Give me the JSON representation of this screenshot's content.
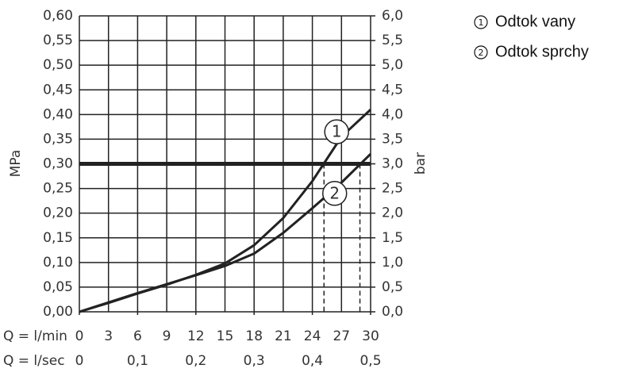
{
  "chart_data": {
    "type": "line",
    "x": [
      0,
      3,
      6,
      9,
      12,
      15,
      18,
      21,
      24,
      27,
      30
    ],
    "series": [
      {
        "name": "Odtok vany",
        "marker_label": "1",
        "color": "#222222",
        "values": [
          0,
          0.018,
          0.037,
          0.055,
          0.075,
          0.098,
          0.135,
          0.19,
          0.265,
          0.355,
          0.41
        ]
      },
      {
        "name": "Odtok sprchy",
        "marker_label": "2",
        "color": "#222222",
        "values": [
          0,
          0.019,
          0.038,
          0.056,
          0.074,
          0.093,
          0.118,
          0.16,
          0.21,
          0.262,
          0.32
        ]
      }
    ],
    "threshold": 0.3,
    "crossings": [
      25.2,
      28.9
    ],
    "xlabel": "Q = l/min",
    "x2label": "Q = l/sec",
    "ylabel": "MPa",
    "y2label": "bar",
    "xlim": [
      0,
      30
    ],
    "xticks": [
      0,
      3,
      6,
      9,
      12,
      15,
      18,
      21,
      24,
      27,
      30
    ],
    "x2lim": [
      0,
      0.5
    ],
    "x2ticks": [
      0,
      {
        "value": 0.1,
        "label": "0,1"
      },
      {
        "value": 0.2,
        "label": "0,2"
      },
      {
        "value": 0.3,
        "label": "0,3"
      },
      {
        "value": 0.4,
        "label": "0,4"
      },
      {
        "value": 0.5,
        "label": "0,5"
      }
    ],
    "ylim": [
      0,
      0.6
    ],
    "yticks": [
      {
        "value": 0,
        "label": "0,00"
      },
      {
        "value": 0.05,
        "label": "0,05"
      },
      {
        "value": 0.1,
        "label": "0,10"
      },
      {
        "value": 0.15,
        "label": "0,15"
      },
      {
        "value": 0.2,
        "label": "0,20"
      },
      {
        "value": 0.25,
        "label": "0,25"
      },
      {
        "value": 0.3,
        "label": "0,30"
      },
      {
        "value": 0.35,
        "label": "0,35"
      },
      {
        "value": 0.4,
        "label": "0,40"
      },
      {
        "value": 0.45,
        "label": "0,45"
      },
      {
        "value": 0.5,
        "label": "0,50"
      },
      {
        "value": 0.55,
        "label": "0,55"
      },
      {
        "value": 0.6,
        "label": "0,60"
      }
    ],
    "y2lim": [
      0,
      6
    ],
    "y2ticks": [
      {
        "value": 0,
        "label": "0,0"
      },
      {
        "value": 0.5,
        "label": "0,5"
      },
      {
        "value": 1,
        "label": "1,0"
      },
      {
        "value": 1.5,
        "label": "1,5"
      },
      {
        "value": 2,
        "label": "2,0"
      },
      {
        "value": 2.5,
        "label": "2,5"
      },
      {
        "value": 3,
        "label": "3,0"
      },
      {
        "value": 3.5,
        "label": "3,5"
      },
      {
        "value": 4,
        "label": "4,0"
      },
      {
        "value": 4.5,
        "label": "4,5"
      },
      {
        "value": 5,
        "label": "5,0"
      },
      {
        "value": 5.5,
        "label": "5,5"
      },
      {
        "value": 6,
        "label": "6,0"
      }
    ],
    "grid": true
  }
}
